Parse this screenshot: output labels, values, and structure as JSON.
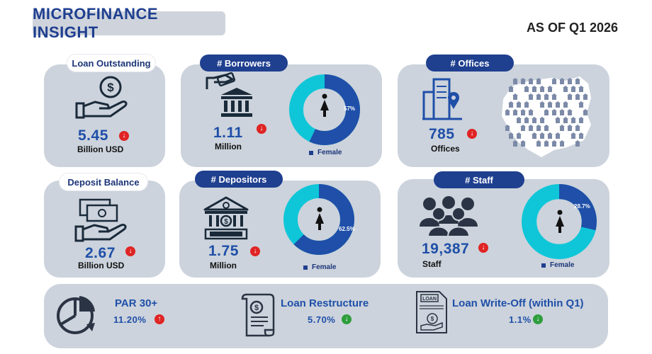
{
  "header": {
    "title": "MICROFINANCE INSIGHT",
    "as_of": "AS OF Q1 2026"
  },
  "loan_outstanding": {
    "label": "Loan Outstanding",
    "value": "5.45",
    "unit": "Billion USD",
    "trend": "down",
    "icon": "money-hand-icon"
  },
  "borrowers": {
    "label": "# Borrowers",
    "value": "1.11",
    "unit": "Million",
    "trend": "down",
    "female_pct": "57%",
    "female_share": 0.57,
    "legend": "Female",
    "icon": "bank-hand-icon"
  },
  "offices": {
    "label": "# Offices",
    "value": "785",
    "unit": "Offices",
    "trend": "down",
    "icon": "office-location-icon"
  },
  "deposit_balance": {
    "label": "Deposit Balance",
    "value": "2.67",
    "unit": "Billion USD",
    "trend": "down",
    "icon": "cash-hand-icon"
  },
  "depositors": {
    "label": "# Depositors",
    "value": "1.75",
    "unit": "Million",
    "trend": "down",
    "female_pct": "62.5%",
    "female_share": 0.625,
    "legend": "Female",
    "icon": "bank-icon"
  },
  "staff": {
    "label": "# Staff",
    "value": "19,387",
    "unit": "Staff",
    "trend": "down",
    "female_pct": "28.7%",
    "female_share": 0.287,
    "legend": "Female",
    "icon": "people-group-icon"
  },
  "bottom": {
    "par": {
      "label": "PAR 30+",
      "value": "11.20%",
      "trend": "up",
      "icon": "pie-chart-icon"
    },
    "restructure": {
      "label": "Loan Restructure",
      "value": "5.70%",
      "trend": "down",
      "icon": "invoice-icon"
    },
    "writeoff": {
      "label": "Loan Write-Off (within Q1)",
      "value": "1.1%",
      "trend": "down",
      "icon_text": "LOAN",
      "icon": "loan-document-icon"
    }
  },
  "colors": {
    "navy": "#1f3f8f",
    "value_blue": "#1f4fa8",
    "ring_cyan": "#0fc6d8",
    "ring_navy": "#1f4fa8",
    "card_gray": "#ccd3dc",
    "red": "#e02424",
    "green": "#2e9e3c"
  }
}
